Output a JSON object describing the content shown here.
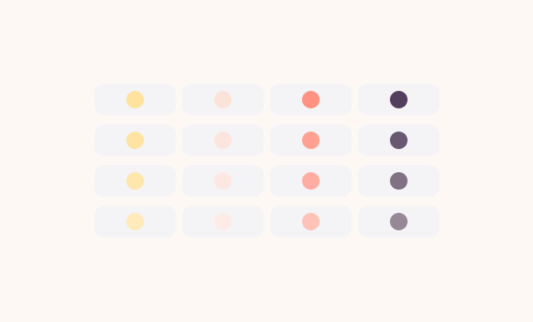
{
  "palette": {
    "rows": [
      [
        "#FFE29D",
        "#FCE3DA",
        "#FF9282",
        "#533E5E"
      ],
      [
        "#FFE3A2",
        "#FCE5DD",
        "#FFA092",
        "#695872"
      ],
      [
        "#FFE6AD",
        "#FDE8E1",
        "#FFADA2",
        "#817184"
      ],
      [
        "#FFEABB",
        "#FDEBE5",
        "#FFC2B8",
        "#978898"
      ]
    ],
    "card_color": "#F4F4F7",
    "background": "#FEF8F5"
  }
}
